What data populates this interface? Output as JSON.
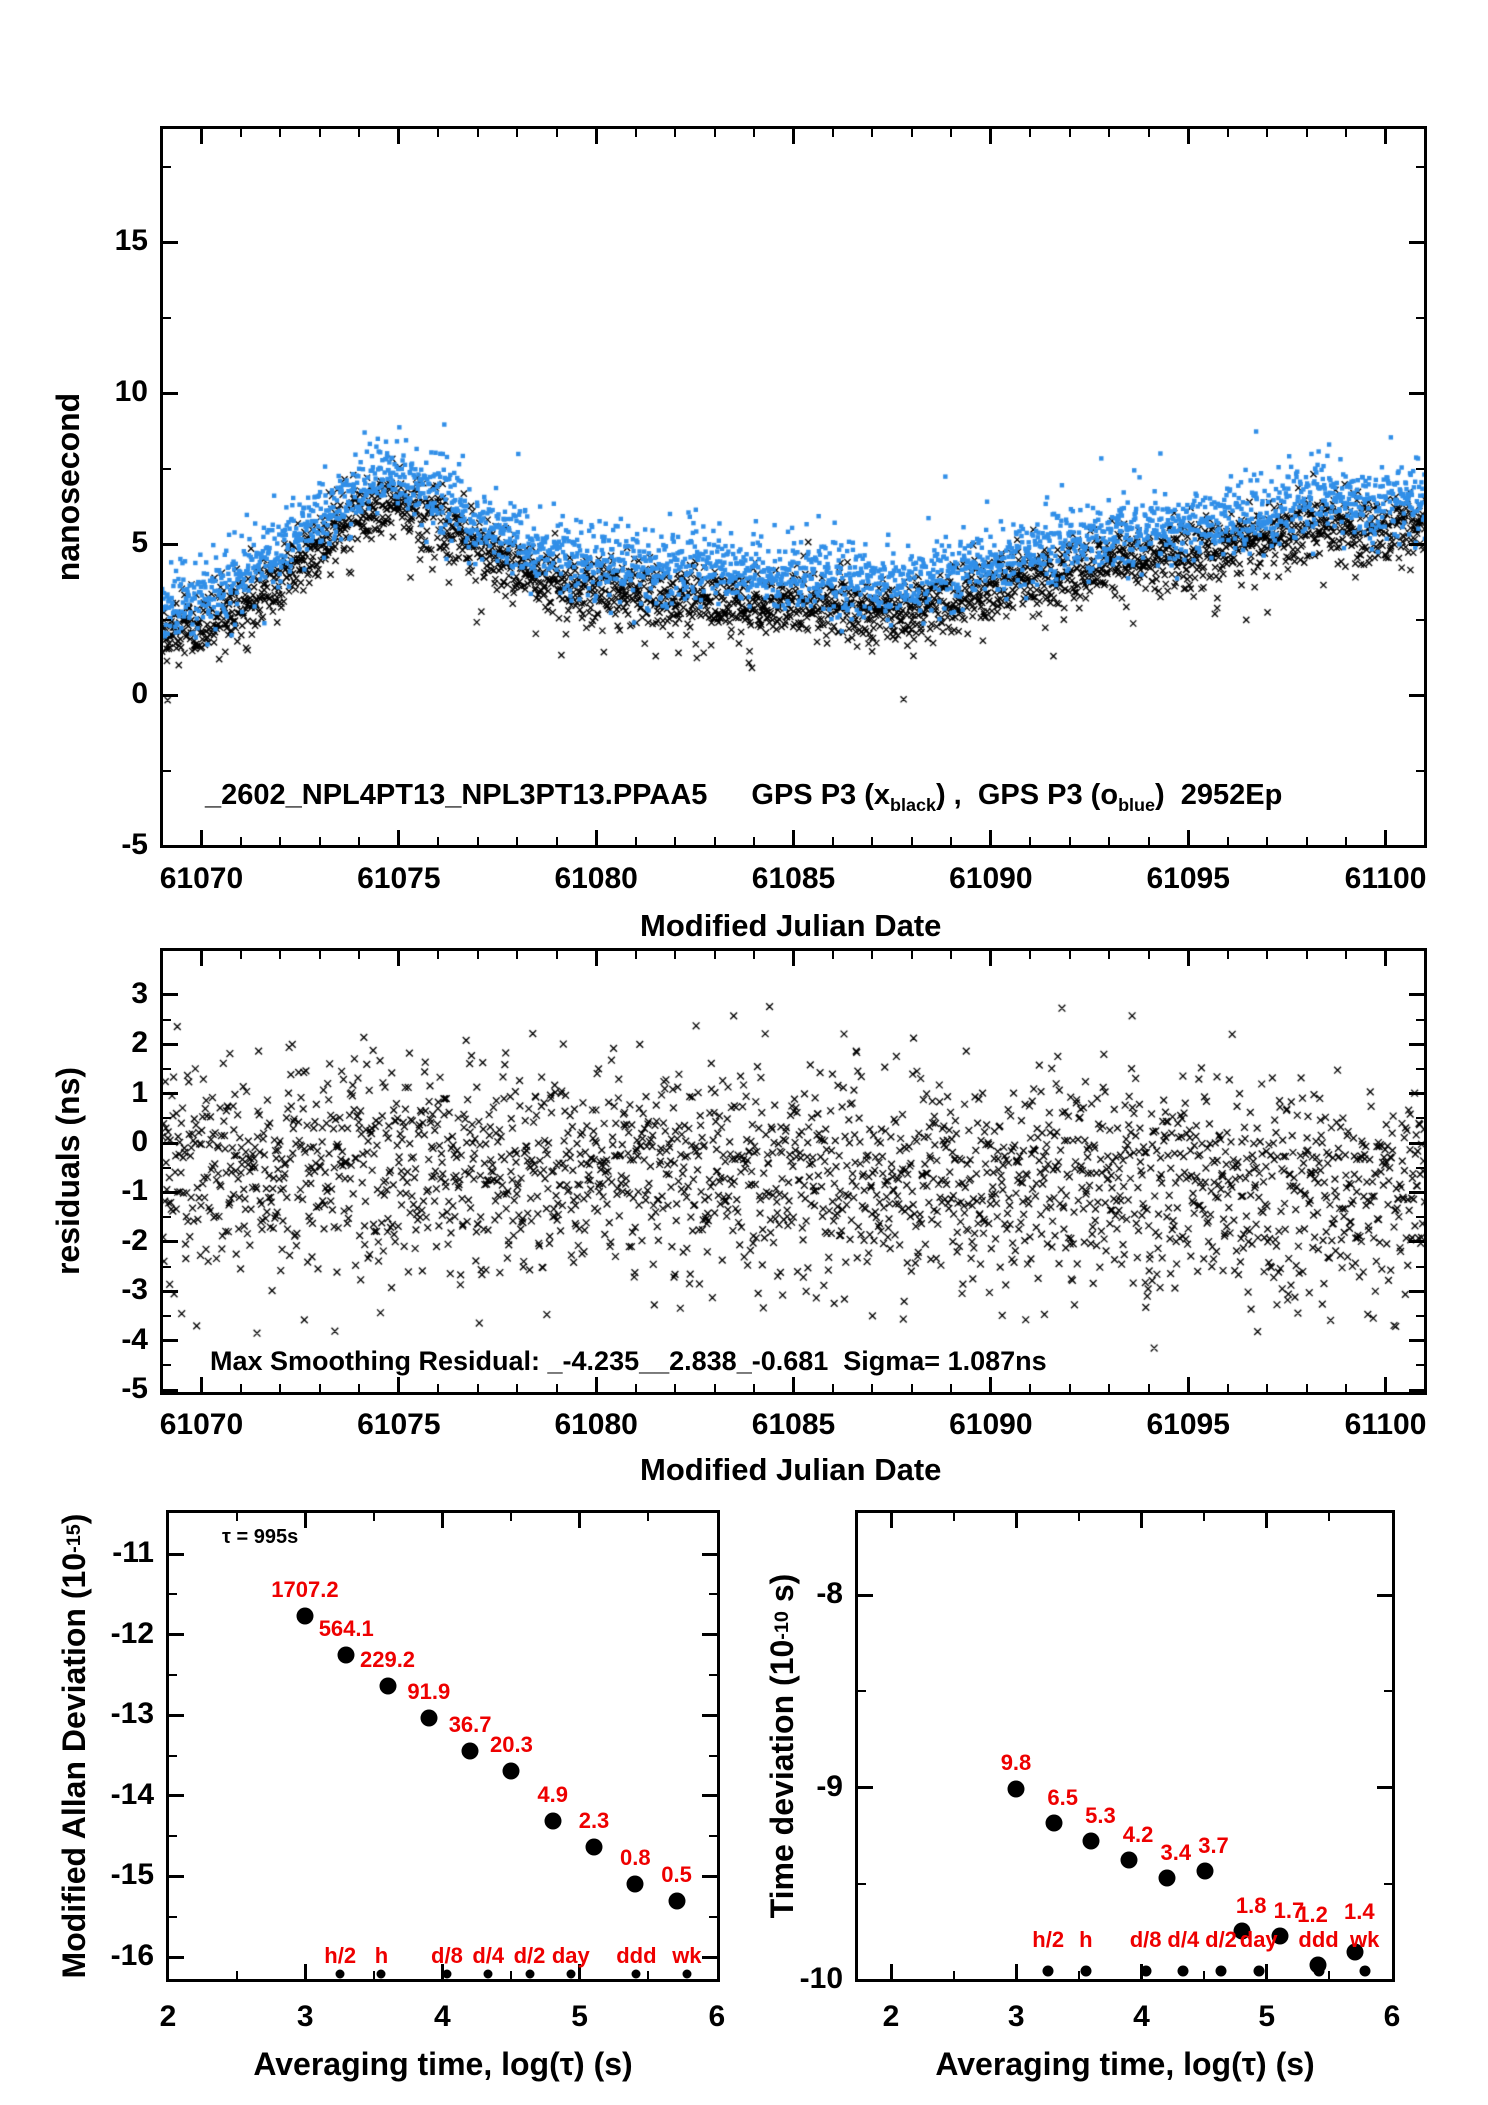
{
  "colors": {
    "black": "#000000",
    "blue": "#318fe8",
    "red": "#ee0000",
    "background": "#ffffff"
  },
  "phase_panel": {
    "ylabel": "nanosecond",
    "xlabel": "Modified Julian Date",
    "title": {
      "file": "_2602_NPL4PT13_NPL3PT13.PPAA5",
      "series1_prefix": "GPS P3 (x",
      "series1_sub": "black",
      "middle": ") ,  GPS P3 (o",
      "series2_sub": "blue",
      "suffix": ")  2952Ep"
    },
    "yticks": {
      "labels": [
        "15",
        "10",
        "5",
        "0",
        "-5"
      ],
      "values": [
        15,
        10,
        5,
        0,
        -5
      ],
      "minor_values": [
        17.5,
        12.5,
        7.5,
        2.5,
        -2.5
      ]
    },
    "xticks": {
      "labels": [
        "61070",
        "61075",
        "61080",
        "61085",
        "61090",
        "61095",
        "61100"
      ],
      "values": [
        61070,
        61075,
        61080,
        61085,
        61090,
        61095,
        61100
      ],
      "minor_step": 1
    },
    "xlim": [
      61069,
      61101
    ],
    "ylim": [
      -5,
      18.8
    ]
  },
  "residual_panel": {
    "ylabel": "residuals (ns)",
    "xlabel": "Modified Julian Date",
    "annotation": "Max Smoothing Residual: _-4.235__2.838_-0.681  Sigma= 1.087ns",
    "stats": {
      "max_negative": -4.235,
      "max_positive": 2.838,
      "final": -0.681,
      "sigma_ns": 1.087
    },
    "yticks": {
      "labels": [
        "3",
        "2",
        "1",
        "0",
        "-1",
        "-2",
        "-3",
        "-4",
        "-5"
      ],
      "values": [
        3,
        2,
        1,
        0,
        -1,
        -2,
        -3,
        -4,
        -5
      ],
      "minor_values": [
        2.5,
        1.5,
        0.5,
        -0.5,
        -1.5,
        -2.5,
        -3.5,
        -4.5
      ]
    },
    "xticks": {
      "labels": [
        "61070",
        "61075",
        "61080",
        "61085",
        "61090",
        "61095",
        "61100"
      ],
      "values": [
        61070,
        61075,
        61080,
        61085,
        61090,
        61095,
        61100
      ],
      "minor_step": 1
    },
    "xlim": [
      61069,
      61101
    ],
    "ylim": [
      -5.06,
      3.91
    ]
  },
  "mdev_panel": {
    "ylabel_prefix": "Modified Allan Deviation (10",
    "ylabel_sup": "-15",
    "ylabel_suffix": ")",
    "xlabel": "Averaging time, log(τ) (s)",
    "tau_note": "τ = 995s",
    "yticks": {
      "labels": [
        "-11",
        "-12",
        "-13",
        "-14",
        "-15",
        "-16"
      ],
      "values": [
        -11,
        -12,
        -13,
        -14,
        -15,
        -16
      ],
      "minor_values": [
        -11.5,
        -12.5,
        -13.5,
        -14.5,
        -15.5
      ]
    },
    "xticks": {
      "labels": [
        "2",
        "3",
        "4",
        "5",
        "6"
      ],
      "values": [
        2,
        3,
        4,
        5,
        6
      ],
      "minor_values": [
        2.5,
        3.5,
        4.5,
        5.5
      ]
    },
    "xlim": [
      2,
      6.01
    ],
    "ylim": [
      -16.3,
      -10.5
    ]
  },
  "tdev_panel": {
    "ylabel_prefix": "Time deviation (10",
    "ylabel_sup": "-10",
    "ylabel_suffix": " s)",
    "xlabel": "Averaging time, log(τ) (s)",
    "yticks": {
      "labels": [
        "-8",
        "-9",
        "-10"
      ],
      "values": [
        -8,
        -9,
        -10
      ],
      "minor_values": [
        -8.5,
        -9.5
      ]
    },
    "xticks": {
      "labels": [
        "2",
        "3",
        "4",
        "5",
        "6"
      ],
      "values": [
        2,
        3,
        4,
        5,
        6
      ],
      "minor_values": [
        2.5,
        3.5,
        4.5,
        5.5
      ]
    },
    "xlim": [
      1.73,
      6.01
    ],
    "ylim": [
      -10.0,
      -7.57
    ]
  },
  "chart_data": [
    {
      "panel": "phase",
      "type": "scatter",
      "title": "_2602_NPL4PT13_NPL3PT13.PPAA5  GPS P3 (x_black) , GPS P3 (o_blue)  2952Ep",
      "xlabel": "Modified Julian Date",
      "ylabel": "nanosecond",
      "xlim": [
        61069,
        61101
      ],
      "ylim": [
        -5,
        18.8
      ],
      "series": [
        {
          "name": "GPS P3 x_black",
          "marker": "x",
          "color": "#000000",
          "n_points": 2700,
          "noise_sigma": 0.55,
          "trend_keypoints": [
            [
              61069,
              2.0
            ],
            [
              61070,
              2.3
            ],
            [
              61071,
              3.0
            ],
            [
              61072,
              3.9
            ],
            [
              61073,
              5.0
            ],
            [
              61074,
              6.0
            ],
            [
              61074.8,
              6.5
            ],
            [
              61076,
              5.8
            ],
            [
              61077,
              4.9
            ],
            [
              61078,
              4.2
            ],
            [
              61079,
              3.7
            ],
            [
              61080,
              3.4
            ],
            [
              61082,
              3.25
            ],
            [
              61084,
              3.1
            ],
            [
              61086,
              2.9
            ],
            [
              61087.5,
              2.7
            ],
            [
              61089,
              3.1
            ],
            [
              61090.5,
              3.7
            ],
            [
              61092,
              4.15
            ],
            [
              61094,
              4.5
            ],
            [
              61096,
              4.85
            ],
            [
              61097.5,
              5.3
            ],
            [
              61098.5,
              5.65
            ],
            [
              61099.5,
              5.35
            ],
            [
              61101,
              5.6
            ]
          ]
        },
        {
          "name": "GPS P3 o_blue",
          "marker": "dot",
          "color": "#318fe8",
          "n_points": 2700,
          "noise_sigma": 0.6,
          "offset_ns": 0.9,
          "trend_note": "same trend as black series shifted up by offset_ns"
        }
      ]
    },
    {
      "panel": "residuals",
      "type": "scatter",
      "xlabel": "Modified Julian Date",
      "ylabel": "residuals (ns)",
      "xlim": [
        61069,
        61101
      ],
      "ylim": [
        -5.06,
        3.91
      ],
      "annotation": "Max Smoothing Residual: _-4.235__2.838_-0.681  Sigma= 1.087ns",
      "series": [
        {
          "name": "smoothing residuals",
          "marker": "x",
          "color": "#000000",
          "n_points": 2200,
          "noise_sigma": 1.12,
          "mean_keypoints": [
            [
              61069,
              -0.4
            ],
            [
              61101,
              -0.88
            ]
          ],
          "clip": [
            -4.235,
            2.838
          ]
        }
      ]
    },
    {
      "panel": "mdev",
      "type": "scatter",
      "xlabel": "Averaging time, log(τ) (s)",
      "ylabel": "Modified Allan Deviation (10^-15)",
      "tau_note": "τ = 995s",
      "xlim": [
        2,
        6.01
      ],
      "ylim": [
        -16.3,
        -10.5
      ],
      "log_tau": [
        2.998,
        3.299,
        3.6,
        3.901,
        4.202,
        4.503,
        4.804,
        5.105,
        5.406,
        5.707
      ],
      "madev_1e15": [
        1707.2,
        564.1,
        229.2,
        91.9,
        36.7,
        20.3,
        4.9,
        2.3,
        0.8,
        0.5
      ],
      "value_labels": [
        "1707.2",
        "564.1",
        "229.2",
        "91.9",
        "36.7",
        "20.3",
        "4.9",
        "2.3",
        "0.8",
        "0.5"
      ],
      "log_madev": [
        -11.77,
        -12.25,
        -12.64,
        -13.04,
        -13.44,
        -13.69,
        -14.31,
        -14.64,
        -15.1,
        -15.3
      ],
      "time_markers": {
        "labels": [
          "h/2",
          "h",
          "d/8",
          "d/4",
          "d/2",
          "day",
          "ddd",
          "wk"
        ],
        "log_tau": [
          3.255,
          3.556,
          4.033,
          4.334,
          4.635,
          4.936,
          5.414,
          5.782
        ]
      }
    },
    {
      "panel": "tdev",
      "type": "scatter",
      "xlabel": "Averaging time, log(τ) (s)",
      "ylabel": "Time deviation (10^-10 s)",
      "xlim": [
        1.73,
        6.01
      ],
      "ylim": [
        -10.0,
        -7.57
      ],
      "log_tau": [
        2.998,
        3.299,
        3.6,
        3.901,
        4.202,
        4.503,
        4.804,
        5.105,
        5.406,
        5.707
      ],
      "tdev_1e10": [
        9.8,
        6.5,
        5.3,
        4.2,
        3.4,
        3.7,
        1.8,
        1.7,
        1.2,
        1.4
      ],
      "value_labels": [
        "9.8",
        "6.5",
        "5.3",
        "4.2",
        "3.4",
        "3.7",
        "1.8",
        "1.7",
        "1.2",
        "1.4"
      ],
      "log_tdev": [
        -9.009,
        -9.187,
        -9.276,
        -9.377,
        -9.469,
        -9.432,
        -9.745,
        -9.77,
        -9.921,
        -9.854
      ],
      "time_markers": {
        "labels": [
          "h/2",
          "h",
          "d/8",
          "d/4",
          "d/2",
          "day",
          "ddd",
          "wk"
        ],
        "log_tau": [
          3.255,
          3.556,
          4.033,
          4.334,
          4.635,
          4.936,
          5.414,
          5.782
        ]
      }
    }
  ]
}
